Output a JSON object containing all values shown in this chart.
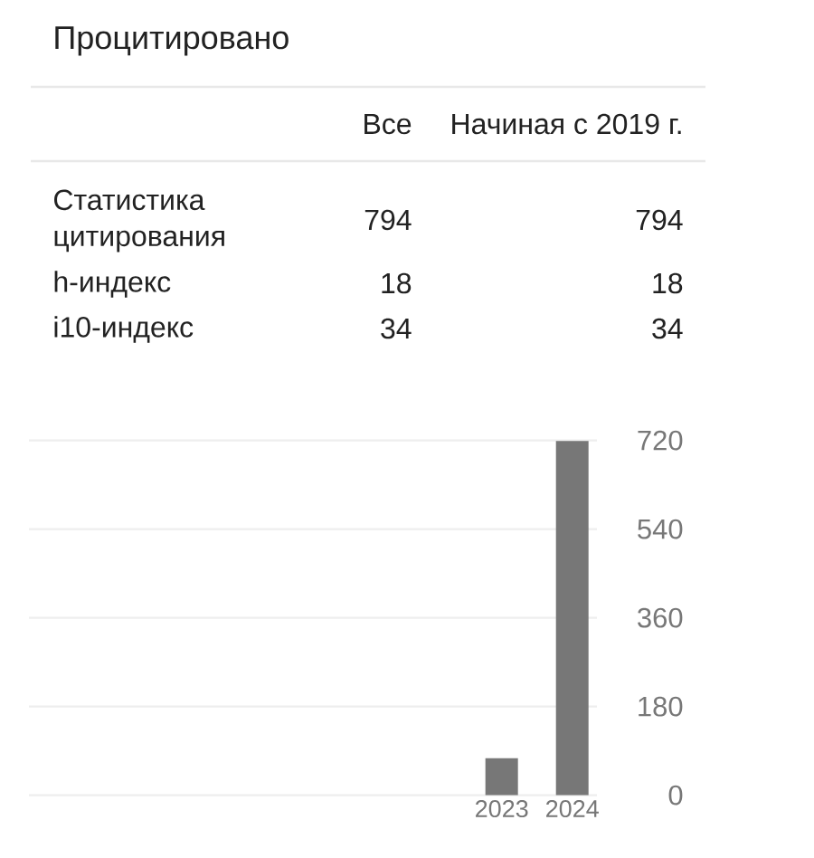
{
  "chart_data": [
    {
      "type": "other",
      "title": "Процитировано",
      "categories": [
        "Все",
        "Начиная с 2019 г."
      ],
      "y_categories": [
        "Статистика цитирования",
        "h-индекс",
        "i10-индекс"
      ],
      "annotations": [
        "794",
        "794",
        "18",
        "18",
        "34",
        "34"
      ]
    },
    {
      "type": "bar",
      "categories": [
        "2023",
        "2024"
      ],
      "values": [
        75,
        719
      ],
      "color": "#777777",
      "ylim": [
        0,
        720
      ],
      "yticks": [
        0,
        180,
        360,
        540,
        720
      ],
      "grid": "y"
    }
  ]
}
